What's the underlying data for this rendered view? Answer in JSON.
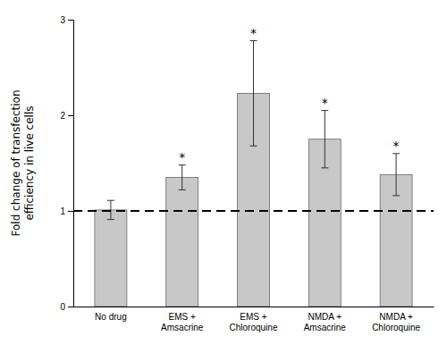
{
  "chart_data": {
    "type": "bar",
    "categories": [
      "No drug",
      "EMS +\nAmsacrine",
      "EMS +\nChloroquine",
      "NMDA +\nAmsacrine",
      "NMDA +\nChloroquine"
    ],
    "values": [
      1.01,
      1.35,
      2.23,
      1.75,
      1.38
    ],
    "errors": [
      0.1,
      0.13,
      0.55,
      0.3,
      0.22
    ],
    "color": "#c8c8c8",
    "ylim": [
      0,
      3.0
    ],
    "yticks": [
      0,
      1,
      2,
      3
    ],
    "ylabel": "Fold change of transfection\nefficiency in live cells",
    "hline": 1.0,
    "annotations": [
      null,
      "*",
      "*",
      "*",
      "*"
    ]
  }
}
